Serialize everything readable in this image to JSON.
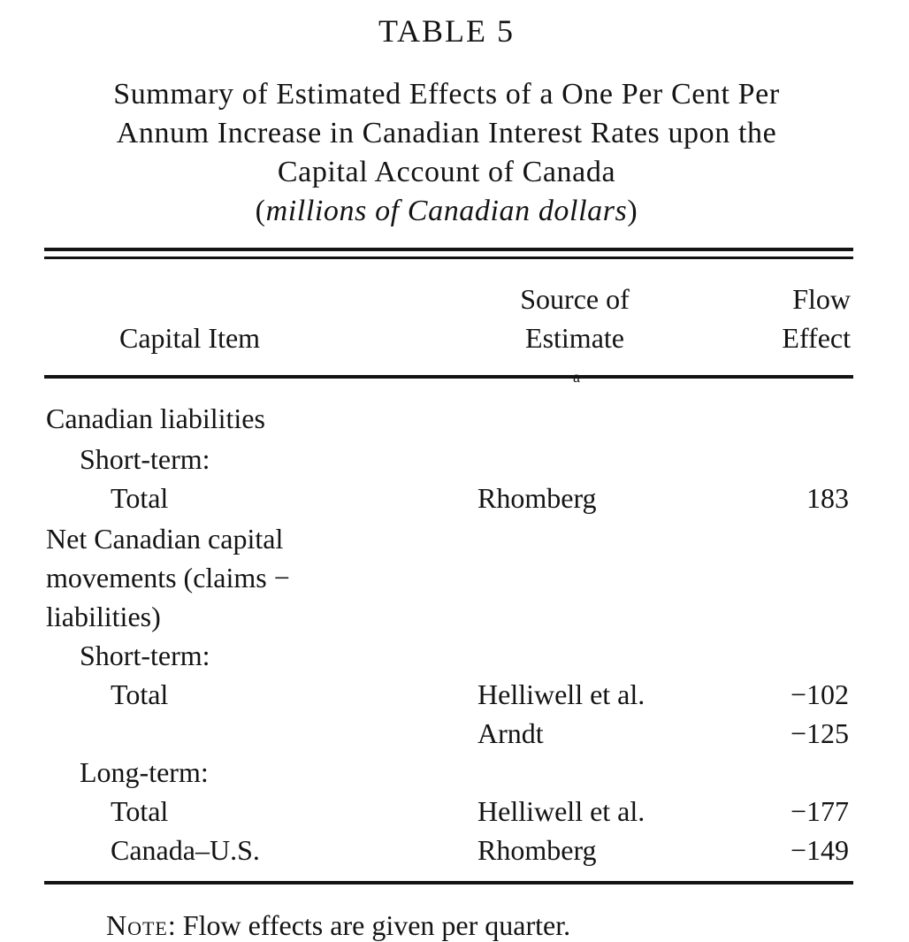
{
  "table_label": "TABLE 5",
  "title_lines": [
    "Summary of Estimated Effects of a One Per Cent Per",
    "Annum Increase in Canadian Interest Rates upon the",
    "Capital Account of Canada"
  ],
  "units": {
    "open": "(",
    "text": "millions of Canadian dollars",
    "close": ")"
  },
  "headers": {
    "capital_item": "Capital Item",
    "source_line1": "Source of",
    "source_line2": "Estimate",
    "source_footnote_mark": "a",
    "flow_line1": "Flow",
    "flow_line2": "Effect"
  },
  "rows": [
    {
      "item": "Canadian liabilities",
      "source": "",
      "flow": ""
    },
    {
      "item": "Short-term:",
      "source": "",
      "flow": ""
    },
    {
      "item": "Total",
      "source": "Rhomberg",
      "flow": "183"
    },
    {
      "item": "Net Canadian capital",
      "source": "",
      "flow": ""
    },
    {
      "item": "movements (claims −",
      "source": "",
      "flow": ""
    },
    {
      "item": "liabilities)",
      "source": "",
      "flow": ""
    },
    {
      "item": "Short-term:",
      "source": "",
      "flow": ""
    },
    {
      "item": "Total",
      "source": "Helliwell et al.",
      "flow": "−102"
    },
    {
      "item": "",
      "source": "Arndt",
      "flow": "−125"
    },
    {
      "item": "Long-term:",
      "source": "",
      "flow": ""
    },
    {
      "item": "Total",
      "source": "Helliwell et al.",
      "flow": "−177"
    },
    {
      "item": "Canada–U.S.",
      "source": "Rhomberg",
      "flow": "−149"
    }
  ],
  "note": {
    "label": "Note",
    "text": ": Flow effects are given per quarter."
  }
}
